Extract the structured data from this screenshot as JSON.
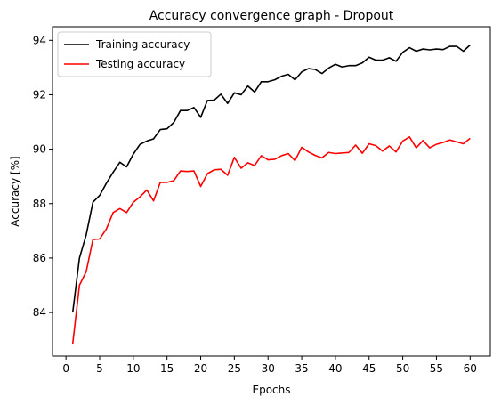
{
  "chart_data": {
    "type": "line",
    "title": "Accuracy convergence graph - Dropout",
    "xlabel": "Epochs",
    "ylabel": "Accuracy [%]",
    "xlim": [
      -2,
      63
    ],
    "ylim": [
      82.4,
      94.5
    ],
    "xticks": [
      0,
      5,
      10,
      15,
      20,
      25,
      30,
      35,
      40,
      45,
      50,
      55,
      60
    ],
    "yticks": [
      84,
      86,
      88,
      90,
      92,
      94
    ],
    "grid": false,
    "legend_position": "upper-left",
    "x": [
      1,
      2,
      3,
      4,
      5,
      6,
      7,
      8,
      9,
      10,
      11,
      12,
      13,
      14,
      15,
      16,
      17,
      18,
      19,
      20,
      21,
      22,
      23,
      24,
      25,
      26,
      27,
      28,
      29,
      30,
      31,
      32,
      33,
      34,
      35,
      36,
      37,
      38,
      39,
      40,
      41,
      42,
      43,
      44,
      45,
      46,
      47,
      48,
      49,
      50,
      51,
      52,
      53,
      54,
      55,
      56,
      57,
      58,
      59,
      60
    ],
    "series": [
      {
        "name": "Training accuracy",
        "color": "#000000",
        "values": [
          84.0,
          86.0,
          86.85,
          88.05,
          88.3,
          88.75,
          89.15,
          89.52,
          89.35,
          89.82,
          90.18,
          90.3,
          90.38,
          90.72,
          90.75,
          90.98,
          91.42,
          91.42,
          91.53,
          91.17,
          91.79,
          91.8,
          92.02,
          91.68,
          92.07,
          92.0,
          92.32,
          92.1,
          92.48,
          92.48,
          92.55,
          92.68,
          92.75,
          92.55,
          92.84,
          92.96,
          92.93,
          92.78,
          92.98,
          93.12,
          93.02,
          93.07,
          93.07,
          93.17,
          93.38,
          93.27,
          93.27,
          93.36,
          93.23,
          93.56,
          93.73,
          93.6,
          93.68,
          93.65,
          93.68,
          93.66,
          93.78,
          93.78,
          93.6,
          93.83
        ]
      },
      {
        "name": "Testing accuracy",
        "color": "#ff0000",
        "values": [
          82.85,
          85.0,
          85.5,
          86.68,
          86.7,
          87.07,
          87.67,
          87.82,
          87.67,
          88.05,
          88.25,
          88.5,
          88.1,
          88.78,
          88.78,
          88.84,
          89.2,
          89.18,
          89.2,
          88.63,
          89.1,
          89.24,
          89.26,
          89.04,
          89.7,
          89.3,
          89.5,
          89.4,
          89.76,
          89.61,
          89.63,
          89.76,
          89.84,
          89.58,
          90.07,
          89.9,
          89.77,
          89.68,
          89.88,
          89.84,
          89.86,
          89.88,
          90.15,
          89.85,
          90.2,
          90.13,
          89.93,
          90.12,
          89.9,
          90.3,
          90.45,
          90.05,
          90.32,
          90.05,
          90.18,
          90.25,
          90.34,
          90.27,
          90.2,
          90.4
        ]
      }
    ]
  }
}
